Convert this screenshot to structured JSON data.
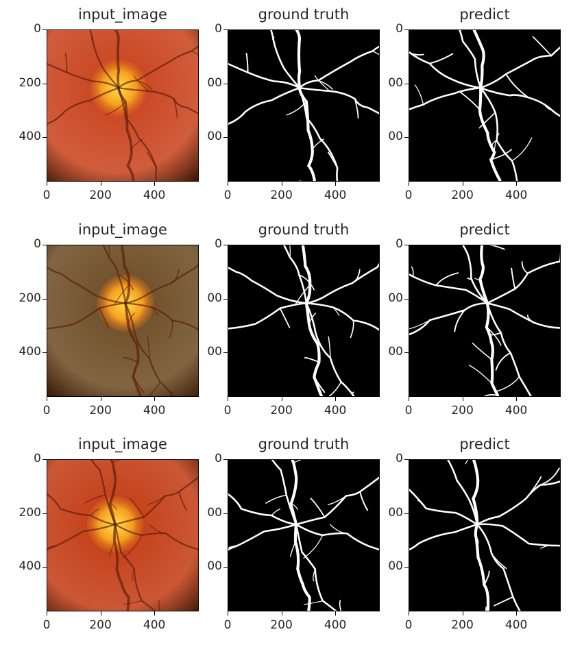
{
  "figure": {
    "rows": [
      {
        "panels": [
          {
            "title": "input_image",
            "kind": "fundus",
            "palette": "orange"
          },
          {
            "title": "ground truth",
            "kind": "mask"
          },
          {
            "title": "predict",
            "kind": "mask"
          }
        ]
      },
      {
        "panels": [
          {
            "title": "input_image",
            "kind": "fundus",
            "palette": "olive"
          },
          {
            "title": "ground truth",
            "kind": "mask"
          },
          {
            "title": "predict",
            "kind": "mask"
          }
        ]
      },
      {
        "panels": [
          {
            "title": "input_image",
            "kind": "fundus",
            "palette": "red"
          },
          {
            "title": "ground truth",
            "kind": "mask"
          },
          {
            "title": "predict",
            "kind": "mask"
          }
        ]
      }
    ],
    "yticks": [
      "0",
      "200",
      "400"
    ],
    "xticks": [
      "0",
      "200",
      "400"
    ],
    "clipped_yticks": [
      "0",
      "00",
      "00"
    ],
    "colors": {
      "mask_background": "#000000",
      "vessel": "#ffffff",
      "fundus_orange": "#c8401a",
      "fundus_olive": "#6b4a22",
      "fundus_red": "#c23a12"
    }
  }
}
